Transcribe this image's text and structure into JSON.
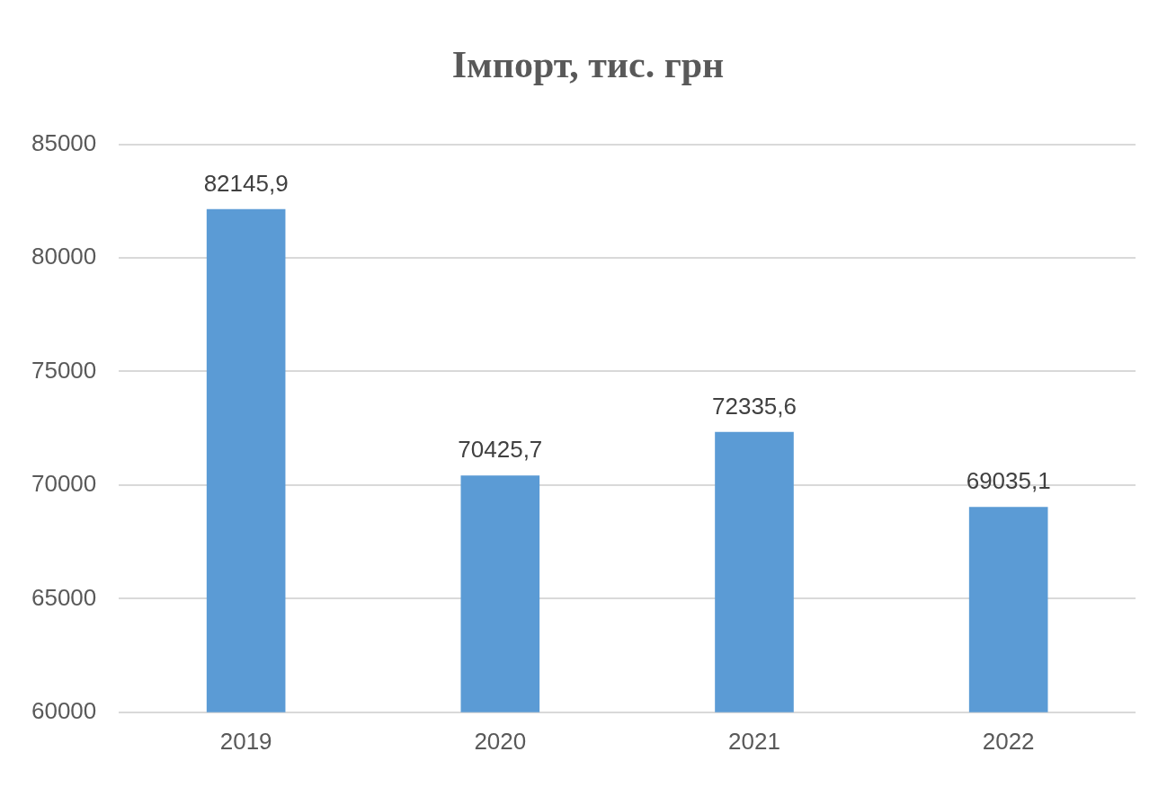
{
  "chart_data": {
    "type": "bar",
    "title": "Імпорт, тис. грн",
    "categories": [
      "2019",
      "2020",
      "2021",
      "2022"
    ],
    "values": [
      82145.9,
      70425.7,
      72335.6,
      69035.1
    ],
    "value_labels": [
      "82145,9",
      "70425,7",
      "72335,6",
      "69035,1"
    ],
    "color": "#5b9bd5",
    "ylim": [
      60000,
      85000
    ],
    "yticks": [
      60000,
      65000,
      70000,
      75000,
      80000,
      85000
    ],
    "grid": "y",
    "legend": false
  }
}
